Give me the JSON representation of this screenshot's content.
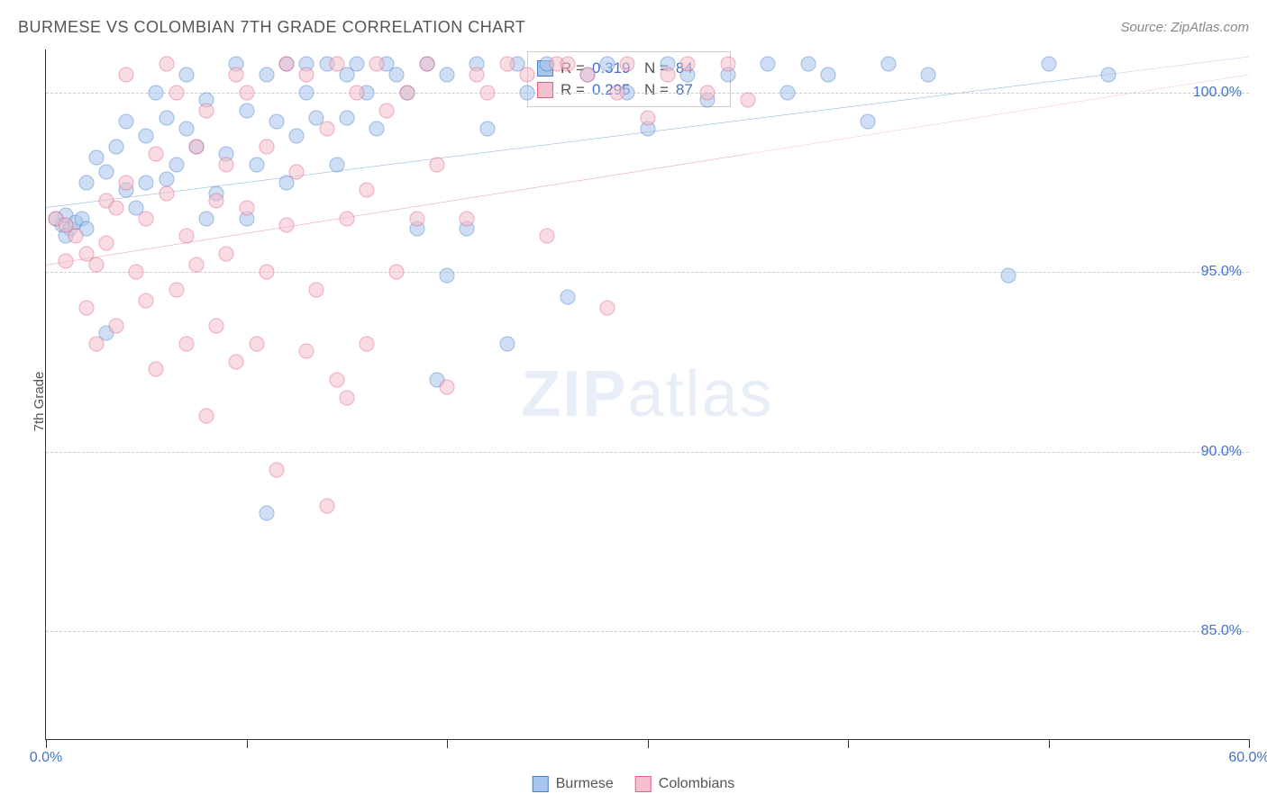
{
  "title": "BURMESE VS COLOMBIAN 7TH GRADE CORRELATION CHART",
  "source": "Source: ZipAtlas.com",
  "ylabel": "7th Grade",
  "watermark_a": "ZIP",
  "watermark_b": "atlas",
  "chart": {
    "type": "scatter",
    "xlim": [
      0,
      60
    ],
    "ylim": [
      82,
      101.2
    ],
    "xticks": [
      0,
      10,
      20,
      30,
      40,
      50,
      60
    ],
    "xtick_labels": {
      "0": "0.0%",
      "60": "60.0%"
    },
    "yticks": [
      85,
      90,
      95,
      100
    ],
    "ytick_labels": {
      "85": "85.0%",
      "90": "90.0%",
      "95": "95.0%",
      "100": "100.0%"
    },
    "grid_color": "#cccccc",
    "background_color": "#ffffff",
    "marker_size": 17,
    "marker_opacity": 0.55,
    "series": [
      {
        "name": "Burmese",
        "fill_color": "#a7c5ed",
        "stroke_color": "#4a7fc9",
        "r": 0.319,
        "n": 84,
        "trend": {
          "x1": 0,
          "y1": 96.8,
          "x2": 60,
          "y2": 101.0,
          "dashed_from_x": 53
        },
        "points": [
          [
            0.5,
            96.5
          ],
          [
            0.8,
            96.3
          ],
          [
            1.0,
            96.6
          ],
          [
            1.2,
            96.2
          ],
          [
            1.5,
            96.4
          ],
          [
            1.8,
            96.5
          ],
          [
            1.0,
            96.0
          ],
          [
            2,
            97.5
          ],
          [
            2.5,
            98.2
          ],
          [
            2,
            96.2
          ],
          [
            3,
            97.8
          ],
          [
            3,
            93.3
          ],
          [
            3.5,
            98.5
          ],
          [
            4,
            97.3
          ],
          [
            4,
            99.2
          ],
          [
            4.5,
            96.8
          ],
          [
            5,
            98.8
          ],
          [
            5,
            97.5
          ],
          [
            5.5,
            100.0
          ],
          [
            6,
            99.3
          ],
          [
            6,
            97.6
          ],
          [
            6.5,
            98.0
          ],
          [
            7,
            100.5
          ],
          [
            7,
            99.0
          ],
          [
            7.5,
            98.5
          ],
          [
            8,
            99.8
          ],
          [
            8,
            96.5
          ],
          [
            8.5,
            97.2
          ],
          [
            9,
            98.3
          ],
          [
            9.5,
            100.8
          ],
          [
            10,
            96.5
          ],
          [
            10,
            99.5
          ],
          [
            10.5,
            98.0
          ],
          [
            11,
            88.3
          ],
          [
            11,
            100.5
          ],
          [
            11.5,
            99.2
          ],
          [
            12,
            100.8
          ],
          [
            12,
            97.5
          ],
          [
            12.5,
            98.8
          ],
          [
            13,
            100.0
          ],
          [
            13,
            100.8
          ],
          [
            13.5,
            99.3
          ],
          [
            14,
            100.8
          ],
          [
            14.5,
            98.0
          ],
          [
            15,
            100.5
          ],
          [
            15,
            99.3
          ],
          [
            15.5,
            100.8
          ],
          [
            16,
            100.0
          ],
          [
            16.5,
            99.0
          ],
          [
            17,
            100.8
          ],
          [
            17.5,
            100.5
          ],
          [
            18,
            100.0
          ],
          [
            18.5,
            96.2
          ],
          [
            19,
            100.8
          ],
          [
            19.5,
            92.0
          ],
          [
            20,
            94.9
          ],
          [
            20,
            100.5
          ],
          [
            21,
            96.2
          ],
          [
            21.5,
            100.8
          ],
          [
            22,
            99.0
          ],
          [
            23,
            93.0
          ],
          [
            23.5,
            100.8
          ],
          [
            24,
            100.0
          ],
          [
            25,
            100.8
          ],
          [
            26,
            94.3
          ],
          [
            27,
            100.5
          ],
          [
            28,
            100.8
          ],
          [
            29,
            100.0
          ],
          [
            30,
            99.0
          ],
          [
            31,
            100.8
          ],
          [
            32,
            100.5
          ],
          [
            33,
            99.8
          ],
          [
            34,
            100.5
          ],
          [
            36,
            100.8
          ],
          [
            37,
            100.0
          ],
          [
            38,
            100.8
          ],
          [
            39,
            100.5
          ],
          [
            41,
            99.2
          ],
          [
            42,
            100.8
          ],
          [
            44,
            100.5
          ],
          [
            48,
            94.9
          ],
          [
            50,
            100.8
          ],
          [
            53,
            100.5
          ]
        ]
      },
      {
        "name": "Colombians",
        "fill_color": "#f5c0cb",
        "stroke_color": "#e5618a",
        "r": 0.295,
        "n": 87,
        "trend": {
          "x1": 0,
          "y1": 95.2,
          "x2": 60,
          "y2": 100.5,
          "dashed_from_x": 35
        },
        "points": [
          [
            0.5,
            96.5
          ],
          [
            1,
            96.3
          ],
          [
            1,
            95.3
          ],
          [
            1.5,
            96.0
          ],
          [
            2,
            95.5
          ],
          [
            2,
            94.0
          ],
          [
            2.5,
            95.2
          ],
          [
            2.5,
            93.0
          ],
          [
            3,
            97.0
          ],
          [
            3,
            95.8
          ],
          [
            3.5,
            96.8
          ],
          [
            3.5,
            93.5
          ],
          [
            4,
            97.5
          ],
          [
            4,
            100.5
          ],
          [
            4.5,
            95.0
          ],
          [
            5,
            96.5
          ],
          [
            5,
            94.2
          ],
          [
            5.5,
            98.3
          ],
          [
            5.5,
            92.3
          ],
          [
            6,
            97.2
          ],
          [
            6,
            100.8
          ],
          [
            6.5,
            94.5
          ],
          [
            6.5,
            100.0
          ],
          [
            7,
            96.0
          ],
          [
            7,
            93.0
          ],
          [
            7.5,
            98.5
          ],
          [
            7.5,
            95.2
          ],
          [
            8,
            99.5
          ],
          [
            8,
            91.0
          ],
          [
            8.5,
            97.0
          ],
          [
            8.5,
            93.5
          ],
          [
            9,
            98.0
          ],
          [
            9,
            95.5
          ],
          [
            9.5,
            100.5
          ],
          [
            9.5,
            92.5
          ],
          [
            10,
            96.8
          ],
          [
            10,
            100.0
          ],
          [
            10.5,
            93.0
          ],
          [
            11,
            98.5
          ],
          [
            11,
            95.0
          ],
          [
            11.5,
            89.5
          ],
          [
            12,
            100.8
          ],
          [
            12,
            96.3
          ],
          [
            12.5,
            97.8
          ],
          [
            13,
            92.8
          ],
          [
            13,
            100.5
          ],
          [
            13.5,
            94.5
          ],
          [
            14,
            88.5
          ],
          [
            14,
            99.0
          ],
          [
            14.5,
            92.0
          ],
          [
            14.5,
            100.8
          ],
          [
            15,
            96.5
          ],
          [
            15,
            91.5
          ],
          [
            15.5,
            100.0
          ],
          [
            16,
            97.3
          ],
          [
            16,
            93.0
          ],
          [
            16.5,
            100.8
          ],
          [
            17,
            99.5
          ],
          [
            17.5,
            95.0
          ],
          [
            18,
            100.0
          ],
          [
            18.5,
            96.5
          ],
          [
            19,
            100.8
          ],
          [
            19.5,
            98.0
          ],
          [
            20,
            91.8
          ],
          [
            21,
            96.5
          ],
          [
            21.5,
            100.5
          ],
          [
            22,
            100.0
          ],
          [
            23,
            100.8
          ],
          [
            24,
            100.5
          ],
          [
            25,
            96.0
          ],
          [
            25.5,
            100.8
          ],
          [
            26,
            100.8
          ],
          [
            27,
            100.5
          ],
          [
            28,
            94.0
          ],
          [
            28.5,
            100.0
          ],
          [
            29,
            100.8
          ],
          [
            30,
            99.3
          ],
          [
            31,
            100.5
          ],
          [
            32,
            100.8
          ],
          [
            33,
            100.0
          ],
          [
            34,
            100.8
          ],
          [
            35,
            99.8
          ]
        ]
      }
    ]
  },
  "legend": {
    "top": {
      "rows": [
        {
          "swatch_fill": "#a7c5ed",
          "swatch_stroke": "#4a7fc9",
          "r_label": "R =",
          "r_val": "0.319",
          "n_label": "N =",
          "n_val": "84"
        },
        {
          "swatch_fill": "#f5c0cb",
          "swatch_stroke": "#e5618a",
          "r_label": "R =",
          "r_val": "0.295",
          "n_label": "N =",
          "n_val": "87"
        }
      ]
    },
    "bottom": [
      {
        "label": "Burmese",
        "fill": "#a7c5ed",
        "stroke": "#4a7fc9"
      },
      {
        "label": "Colombians",
        "fill": "#f5c0cb",
        "stroke": "#e5618a"
      }
    ]
  }
}
